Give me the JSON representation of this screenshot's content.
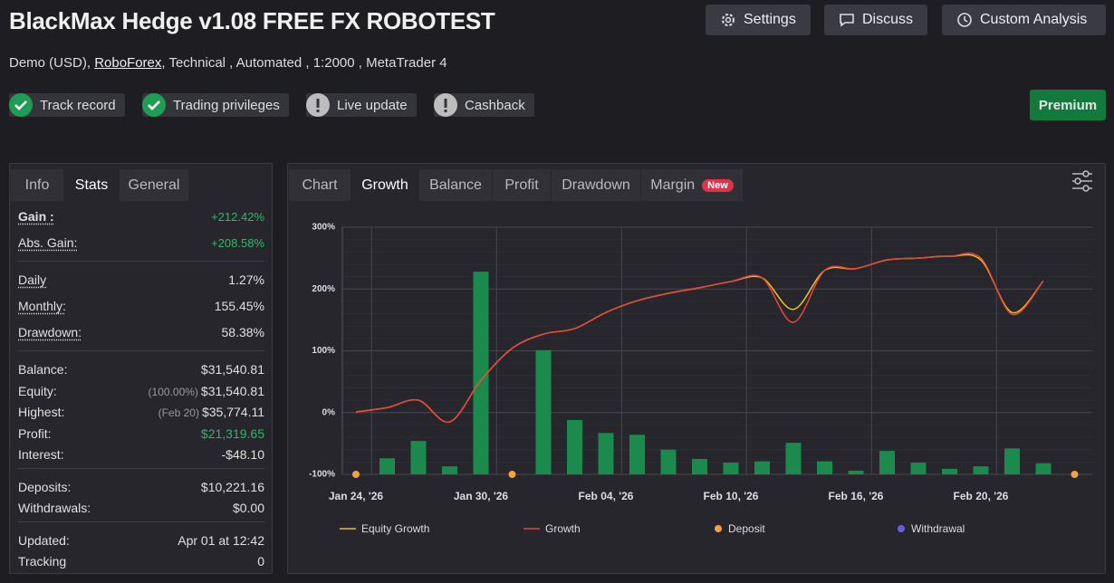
{
  "header": {
    "title": "BlackMax Hedge v1.08 FREE FX ROBOTEST",
    "subtitle_prefix": "Demo (USD),",
    "broker": "RoboForex",
    "subtitle_suffix": ", Technical , Automated , 1:2000 , MetaTrader 4",
    "buttons": [
      "Settings",
      "Discuss",
      "Custom Analysis"
    ],
    "badges": [
      "Track record",
      "Trading privileges",
      "Live update",
      "Cashback"
    ],
    "premium": "Premium"
  },
  "stats": {
    "tabs": [
      "Info",
      "Stats",
      "General"
    ],
    "groups": [
      [
        {
          "label": "Gain :",
          "value": "+212.42%"
        },
        {
          "label": "Abs. Gain:",
          "value": "+208.58%"
        }
      ],
      [
        {
          "label": "Daily",
          "value": "1.27%"
        },
        {
          "label": "Monthly:",
          "value": "155.45%"
        },
        {
          "label": "Drawdown:",
          "value": "58.38%"
        }
      ],
      [
        {
          "label": "Balance:",
          "value": "$31,540.81"
        },
        {
          "label": "Equity:",
          "note": "(100.00%)",
          "value": "$31,540.81"
        },
        {
          "label": "Highest:",
          "note": "(Feb 20)",
          "value": "$35,774.11"
        },
        {
          "label": "Profit:",
          "value": "$21,319.65"
        },
        {
          "label": "Interest:",
          "value": "-$48.10"
        }
      ],
      [
        {
          "label": "Deposits:",
          "value": "$10,221.16"
        },
        {
          "label": "Withdrawals:",
          "value": "$0.00"
        }
      ],
      [
        {
          "label": "Updated:",
          "value": "Apr 01 at 12:42"
        },
        {
          "label": "Tracking",
          "value": "0"
        }
      ]
    ]
  },
  "chart_tabs": {
    "tabs": [
      "Chart",
      "Growth",
      "Balance",
      "Profit",
      "Drawdown",
      "Margin"
    ],
    "new_badge": "New"
  },
  "chart_data": {
    "type": "bar",
    "categories": [
      "Jan 24, '26",
      null,
      null,
      null,
      "Jan 30, '26",
      null,
      null,
      null,
      "Feb 04, '26",
      null,
      null,
      null,
      "Feb 10, '26",
      null,
      null,
      null,
      "Feb 16, '26",
      null,
      null,
      null,
      "Feb 20, '26",
      null,
      null,
      null
    ],
    "ylim": [
      -100,
      300
    ],
    "yticks": [
      {
        "value": -100,
        "label": "-100%"
      },
      {
        "value": 0,
        "label": "0%"
      },
      {
        "value": 100,
        "label": "100%"
      },
      {
        "value": 200,
        "label": "200%"
      },
      {
        "value": 300,
        "label": "300%"
      }
    ],
    "grid": true,
    "bars": {
      "color": "#1c8a4c",
      "values": [
        null,
        -74,
        -46,
        -87,
        228,
        null,
        101,
        -12,
        -33,
        -36,
        -60,
        -75,
        -81,
        -79,
        -49,
        -79,
        -94,
        -62,
        -81,
        -91,
        -87,
        -58,
        -82,
        null
      ]
    },
    "series": [
      {
        "name": "Equity Growth",
        "color": "#f2c11e",
        "kind": "line",
        "values": [
          1,
          8,
          20,
          -15,
          52,
          104,
          127,
          136,
          162,
          181,
          193,
          202,
          212,
          218,
          167,
          230,
          233,
          247,
          250,
          253,
          247,
          162,
          213,
          null
        ]
      },
      {
        "name": "Growth",
        "color": "#e8453c",
        "kind": "line",
        "values": [
          1,
          8,
          20,
          -15,
          52,
          104,
          127,
          136,
          162,
          181,
          193,
          202,
          212,
          218,
          146,
          230,
          233,
          247,
          250,
          253,
          250,
          159,
          213,
          null
        ]
      },
      {
        "name": "Deposit",
        "color": "#f5a23c",
        "kind": "dot",
        "values": [
          -100,
          null,
          null,
          null,
          null,
          -100,
          null,
          null,
          null,
          null,
          null,
          null,
          null,
          null,
          null,
          null,
          null,
          null,
          null,
          null,
          null,
          null,
          null,
          -100
        ]
      },
      {
        "name": "Withdrawal",
        "color": "#6b5ce7",
        "kind": "dot",
        "values": [
          null,
          null,
          null,
          null,
          null,
          null,
          null,
          null,
          null,
          null,
          null,
          null,
          null,
          null,
          null,
          null,
          null,
          null,
          null,
          null,
          null,
          null,
          null,
          null
        ]
      }
    ]
  }
}
